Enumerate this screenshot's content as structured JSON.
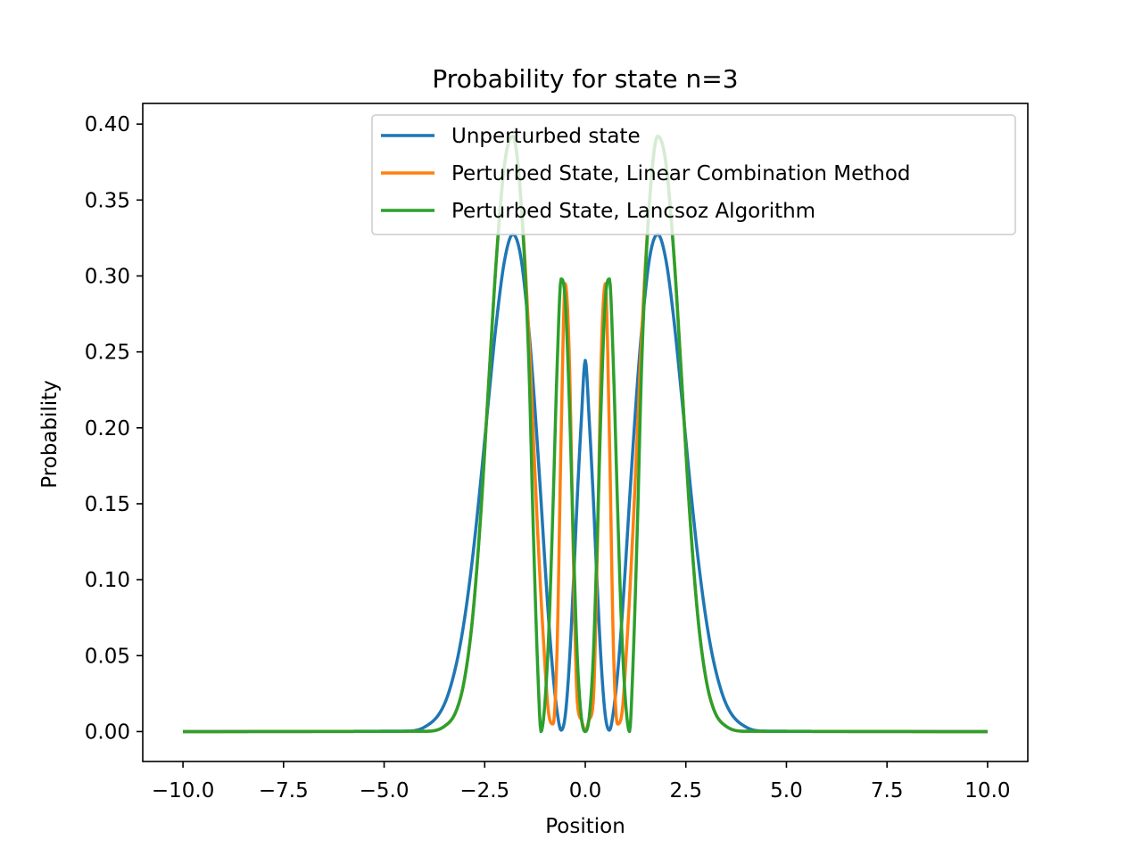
{
  "chart_data": {
    "type": "line",
    "title": "Probability for state n=3",
    "xlabel": "Position",
    "ylabel": "Probability",
    "xlim": [
      -11.0,
      11.0
    ],
    "ylim": [
      -0.0197,
      0.4136
    ],
    "xticks": [
      -10.0,
      -7.5,
      -5.0,
      -2.5,
      0.0,
      2.5,
      5.0,
      7.5,
      10.0
    ],
    "xtick_labels": [
      "−10.0",
      "−7.5",
      "−5.0",
      "−2.5",
      "0.0",
      "2.5",
      "5.0",
      "7.5",
      "10.0"
    ],
    "yticks": [
      0.0,
      0.05,
      0.1,
      0.15,
      0.2,
      0.25,
      0.3,
      0.35,
      0.4
    ],
    "ytick_labels": [
      "0.00",
      "0.05",
      "0.10",
      "0.15",
      "0.20",
      "0.25",
      "0.30",
      "0.35",
      "0.40"
    ],
    "grid": false,
    "legend_position": "top-right",
    "x_range": [
      -10,
      10
    ],
    "series": [
      {
        "name": "Unperturbed state",
        "color": "#1f77b4",
        "x": [
          -10,
          -4.5,
          -4,
          -3.5,
          -3.2,
          -3,
          -2.8,
          -2.6,
          -2.4,
          -2.2,
          -2,
          -1.8,
          -1.6,
          -1.4,
          -1.3,
          -1.22,
          -1.1,
          -1,
          -0.9,
          -0.8,
          -0.7,
          -0.6,
          -0.5,
          -0.4,
          -0.3,
          -0.2,
          -0.1,
          0,
          0.1,
          0.2,
          0.3,
          0.4,
          0.5,
          0.6,
          0.7,
          0.8,
          0.9,
          1,
          1.1,
          1.22,
          1.3,
          1.4,
          1.6,
          1.8,
          2,
          2.2,
          2.4,
          2.6,
          2.8,
          3,
          3.2,
          3.5,
          4,
          4.5,
          10
        ],
        "values": [
          0,
          0.0003,
          0.0029,
          0.0182,
          0.0451,
          0.0745,
          0.1148,
          0.1646,
          0.2196,
          0.2718,
          0.3112,
          0.3274,
          0.3121,
          0.2637,
          0.2307,
          0.2006,
          0.1521,
          0.1097,
          0.07,
          0.0372,
          0.0131,
          0.0009,
          0.01,
          0.0431,
          0.0945,
          0.1533,
          0.2041,
          0.2444,
          0.2041,
          0.1533,
          0.0945,
          0.0431,
          0.01,
          0.0009,
          0.0131,
          0.0372,
          0.07,
          0.1097,
          0.1521,
          0.2006,
          0.2307,
          0.2637,
          0.3121,
          0.3274,
          0.3112,
          0.2718,
          0.2196,
          0.1646,
          0.1148,
          0.0745,
          0.0451,
          0.0182,
          0.0029,
          0.0003,
          0
        ]
      },
      {
        "name": "Perturbed State, Linear Combination Method",
        "color": "#ff7f0e",
        "x": [
          -10,
          -4,
          -3.5,
          -3.2,
          -3,
          -2.8,
          -2.6,
          -2.4,
          -2.2,
          -2,
          -1.8,
          -1.6,
          -1.4,
          -1.3,
          -1.18,
          -1.05,
          -0.9,
          -0.8,
          -0.7,
          -0.6,
          -0.5,
          -0.4,
          -0.3,
          -0.2,
          -0.1,
          0,
          0.1,
          0.2,
          0.3,
          0.4,
          0.5,
          0.6,
          0.7,
          0.8,
          0.9,
          1.05,
          1.18,
          1.3,
          1.4,
          1.6,
          1.8,
          2,
          2.2,
          2.4,
          2.6,
          2.8,
          3,
          3.2,
          3.5,
          4,
          10
        ],
        "values": [
          0,
          0.0002,
          0.0035,
          0.0142,
          0.0348,
          0.0752,
          0.1421,
          0.23,
          0.315,
          0.375,
          0.392,
          0.35,
          0.26,
          0.2,
          0.13,
          0.065,
          0.01,
          0.005,
          0.055,
          0.195,
          0.295,
          0.25,
          0.12,
          0.02,
          0.008,
          0.0,
          0.008,
          0.02,
          0.12,
          0.25,
          0.295,
          0.195,
          0.055,
          0.005,
          0.01,
          0.065,
          0.13,
          0.2,
          0.26,
          0.35,
          0.392,
          0.375,
          0.315,
          0.23,
          0.1421,
          0.0752,
          0.0348,
          0.0142,
          0.0035,
          0.0002,
          0
        ]
      },
      {
        "name": "Perturbed State, Lancsoz Algorithm",
        "color": "#2ca02c",
        "x": [
          -10,
          -4,
          -3.5,
          -3.2,
          -3,
          -2.8,
          -2.6,
          -2.4,
          -2.2,
          -2,
          -1.8,
          -1.6,
          -1.4,
          -1.3,
          -1.18,
          -1.1,
          -1,
          -0.9,
          -0.8,
          -0.7,
          -0.6,
          -0.5,
          -0.4,
          -0.3,
          -0.2,
          -0.1,
          0,
          0.1,
          0.2,
          0.3,
          0.4,
          0.5,
          0.6,
          0.7,
          0.8,
          0.9,
          1,
          1.1,
          1.18,
          1.3,
          1.4,
          1.6,
          1.8,
          2,
          2.2,
          2.4,
          2.6,
          2.8,
          3,
          3.2,
          3.5,
          4,
          10
        ],
        "values": [
          0,
          0.0002,
          0.0035,
          0.0142,
          0.0348,
          0.0752,
          0.1421,
          0.23,
          0.315,
          0.375,
          0.392,
          0.35,
          0.24,
          0.14,
          0.04,
          0.0,
          0.02,
          0.07,
          0.15,
          0.24,
          0.298,
          0.285,
          0.22,
          0.13,
          0.05,
          0.01,
          0.0,
          0.01,
          0.05,
          0.13,
          0.22,
          0.285,
          0.298,
          0.24,
          0.15,
          0.07,
          0.02,
          0.0,
          0.04,
          0.14,
          0.24,
          0.35,
          0.392,
          0.375,
          0.315,
          0.23,
          0.1421,
          0.0752,
          0.0348,
          0.0142,
          0.0035,
          0.0002,
          0
        ]
      }
    ]
  }
}
